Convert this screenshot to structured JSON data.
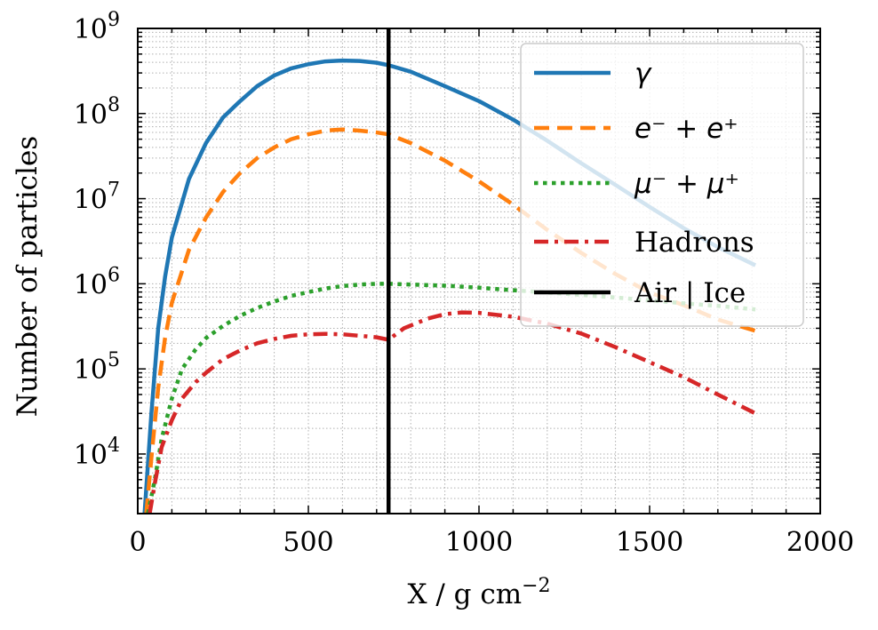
{
  "chart_data": {
    "type": "line",
    "xlabel": "X / g cm",
    "xlabel_superscript": "−2",
    "ylabel": "Number of particles",
    "xlim": [
      0,
      2000
    ],
    "ylim_log10": [
      3.3,
      9
    ],
    "y_scale": "log",
    "grid": true,
    "legend_position": "top-right",
    "x_ticks": [
      {
        "value": 0,
        "label": "0"
      },
      {
        "value": 500,
        "label": "500"
      },
      {
        "value": 1000,
        "label": "1000"
      },
      {
        "value": 1500,
        "label": "1500"
      },
      {
        "value": 2000,
        "label": "2000"
      }
    ],
    "y_ticks": [
      {
        "exp": 4,
        "base": "10",
        "sup": "4"
      },
      {
        "exp": 5,
        "base": "10",
        "sup": "5"
      },
      {
        "exp": 6,
        "base": "10",
        "sup": "6"
      },
      {
        "exp": 7,
        "base": "10",
        "sup": "7"
      },
      {
        "exp": 8,
        "base": "10",
        "sup": "8"
      },
      {
        "exp": 9,
        "base": "10",
        "sup": "9"
      }
    ],
    "boundary": {
      "name": "Air | Ice",
      "x": 735
    },
    "series": [
      {
        "name": "γ",
        "color": "#1f77b4",
        "style": "solid",
        "x": [
          20,
          40,
          60,
          80,
          100,
          150,
          200,
          250,
          300,
          350,
          400,
          450,
          500,
          550,
          600,
          650,
          700,
          735,
          800,
          900,
          1000,
          1100,
          1200,
          1300,
          1400,
          1500,
          1600,
          1700,
          1810
        ],
        "y": [
          2000,
          30000,
          300000,
          1200000,
          3500000,
          17000000,
          45000000,
          90000000,
          140000000,
          210000000,
          280000000,
          340000000,
          380000000,
          410000000,
          420000000,
          415000000,
          395000000,
          370000000,
          310000000,
          210000000,
          140000000,
          85000000,
          48000000,
          26000000,
          14500000,
          8000000,
          4500000,
          2700000,
          1650000
        ]
      },
      {
        "name": "e⁻ + e⁺",
        "color": "#ff7f0e",
        "style": "dashed",
        "x": [
          25,
          40,
          60,
          80,
          100,
          150,
          200,
          250,
          300,
          350,
          400,
          450,
          500,
          550,
          600,
          650,
          700,
          735,
          800,
          900,
          1000,
          1100,
          1200,
          1300,
          1400,
          1500,
          1600,
          1700,
          1810
        ],
        "y": [
          2000,
          9000,
          60000,
          230000,
          600000,
          2500000,
          6000000,
          12000000,
          20000000,
          30000000,
          40000000,
          50000000,
          57000000,
          63000000,
          65000000,
          63000000,
          60000000,
          57000000,
          45000000,
          28000000,
          16000000,
          8500000,
          4300000,
          2300000,
          1300000,
          790000,
          560000,
          380000,
          280000
        ]
      },
      {
        "name": "μ⁻ + μ⁺",
        "color": "#2ca02c",
        "style": "dotted",
        "x": [
          30,
          50,
          70,
          100,
          130,
          170,
          200,
          250,
          300,
          350,
          400,
          450,
          500,
          550,
          600,
          650,
          700,
          735,
          800,
          900,
          1000,
          1100,
          1200,
          1300,
          1400,
          1500,
          1600,
          1700,
          1810
        ],
        "y": [
          2000,
          5000,
          15000,
          45000,
          100000,
          170000,
          230000,
          320000,
          420000,
          520000,
          620000,
          720000,
          800000,
          880000,
          940000,
          980000,
          1000000,
          1000000,
          980000,
          950000,
          900000,
          840000,
          790000,
          740000,
          690000,
          640000,
          590000,
          550000,
          500000
        ]
      },
      {
        "name": "Hadrons",
        "color": "#d62728",
        "style": "dashdot",
        "x": [
          35,
          50,
          70,
          100,
          130,
          170,
          200,
          250,
          300,
          350,
          400,
          450,
          500,
          550,
          600,
          650,
          700,
          735,
          780,
          850,
          900,
          950,
          1000,
          1100,
          1200,
          1300,
          1400,
          1500,
          1600,
          1700,
          1810
        ],
        "y": [
          2000,
          4500,
          12000,
          25000,
          45000,
          70000,
          90000,
          130000,
          165000,
          200000,
          225000,
          245000,
          255000,
          258000,
          255000,
          245000,
          235000,
          220000,
          300000,
          390000,
          440000,
          460000,
          455000,
          410000,
          340000,
          260000,
          180000,
          120000,
          80000,
          50000,
          30000
        ]
      }
    ],
    "legend": [
      {
        "label": "γ",
        "kind": "math"
      },
      {
        "label": "e⁻ + e⁺",
        "kind": "math"
      },
      {
        "label": "μ⁻ + μ⁺",
        "kind": "math"
      },
      {
        "label": "Hadrons",
        "kind": "text"
      },
      {
        "label": "Air | Ice",
        "kind": "text",
        "color": "#000000"
      }
    ]
  }
}
